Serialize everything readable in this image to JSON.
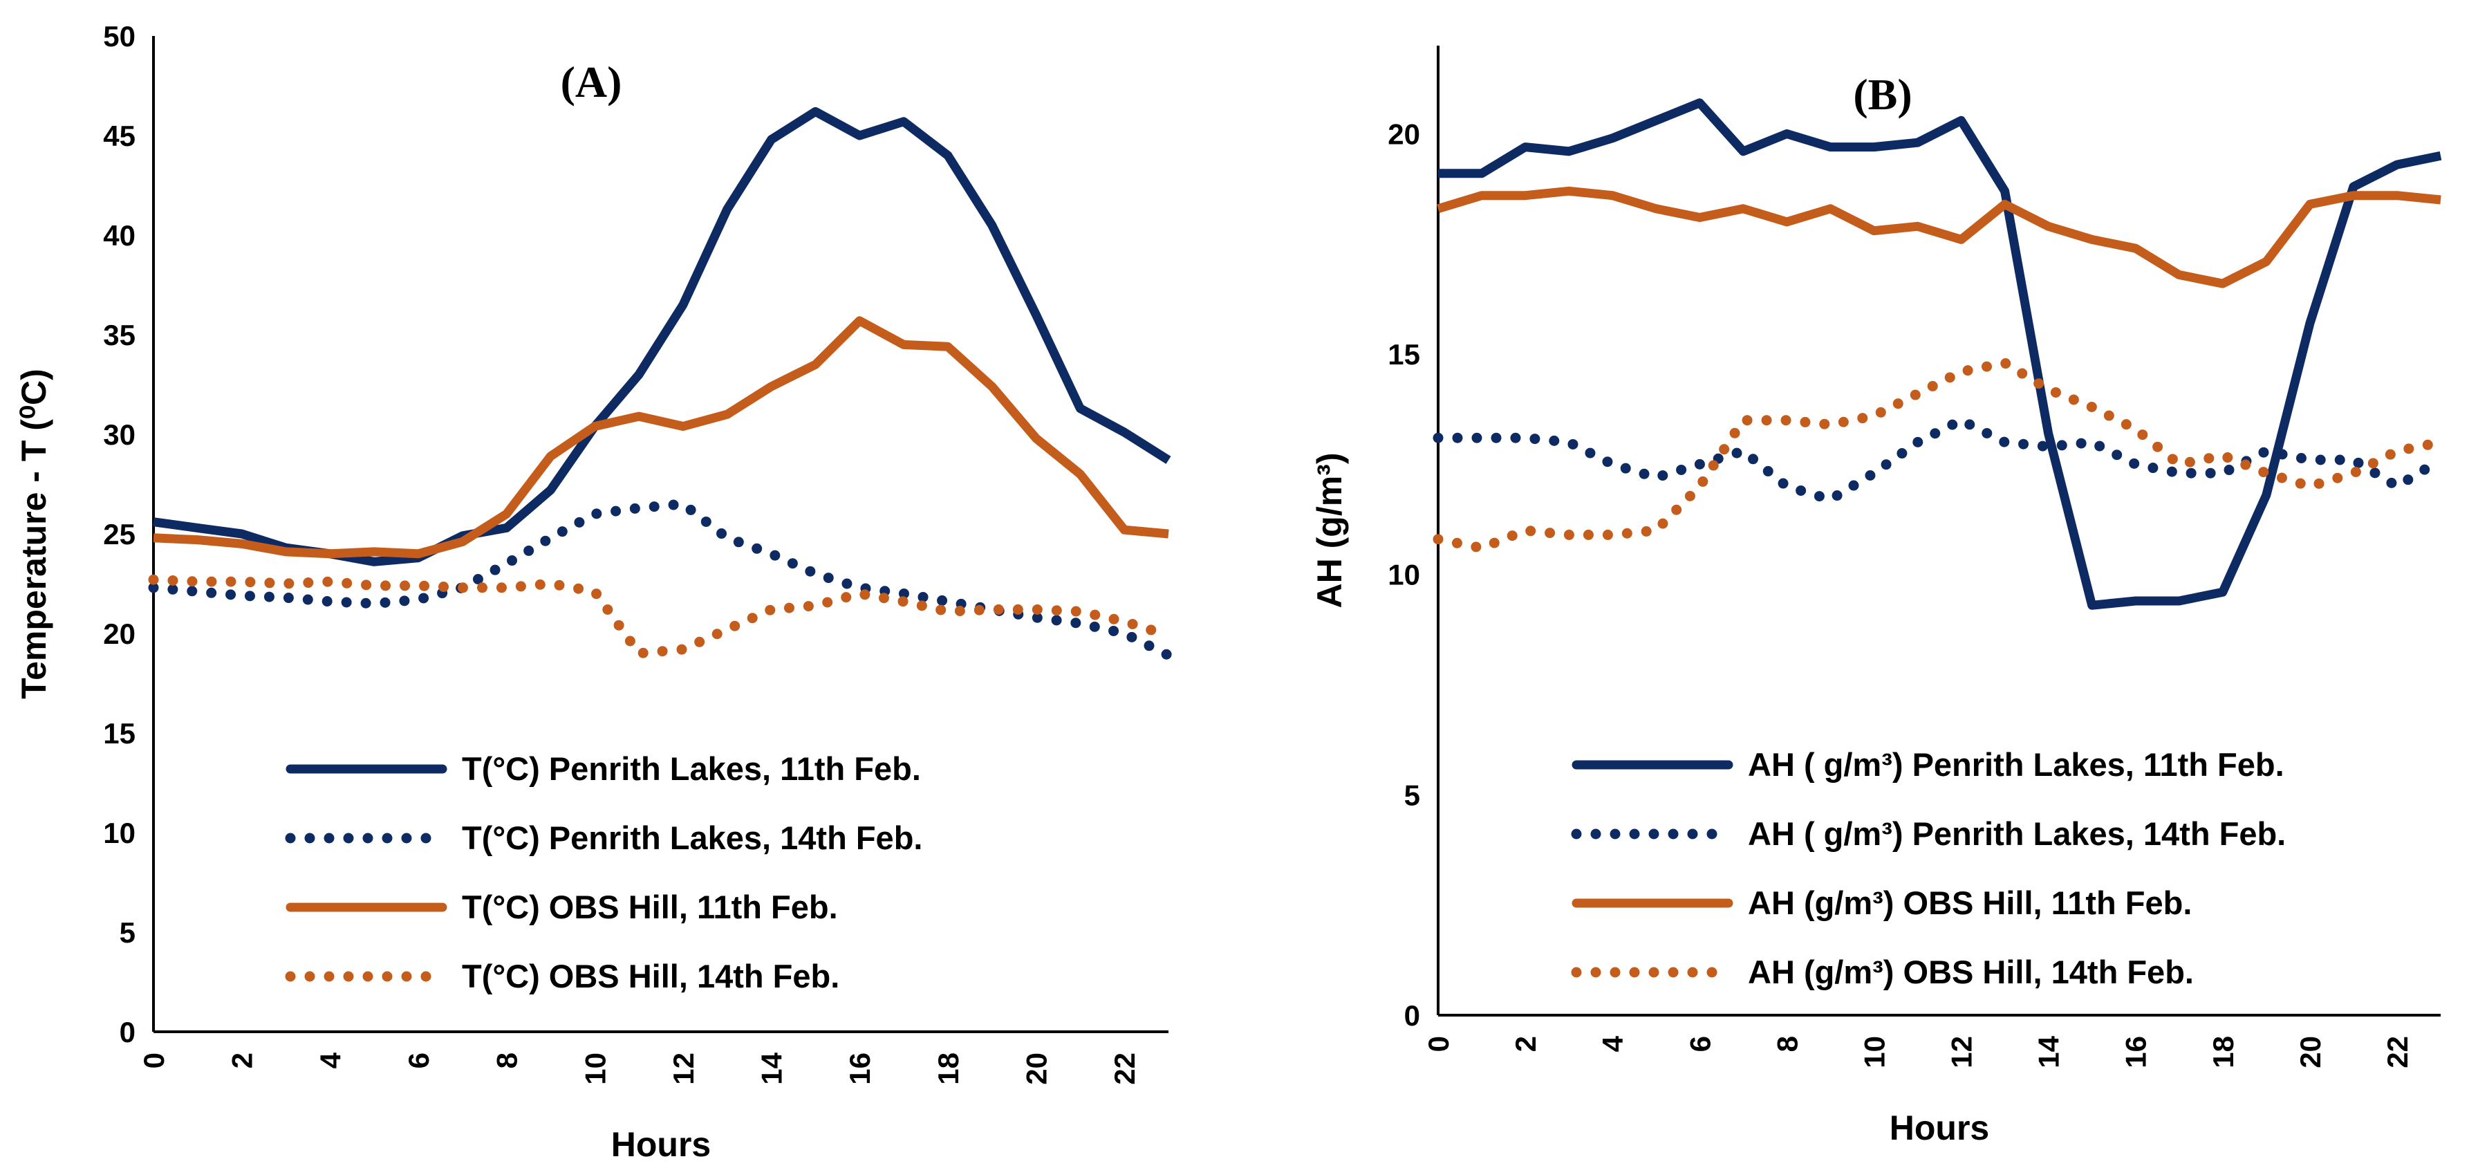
{
  "colors": {
    "navy": "#0d2a63",
    "orange": "#c45c1c"
  },
  "chart_data": [
    {
      "type": "line",
      "title": "(A)",
      "xlabel": "Hours",
      "ylabel": "Temperature - T (⁰C)",
      "ylim": [
        0,
        50
      ],
      "yticks": [
        0,
        5,
        10,
        15,
        20,
        25,
        30,
        35,
        40,
        45,
        50
      ],
      "xlim": [
        0,
        23
      ],
      "xticks": [
        0,
        2,
        4,
        6,
        8,
        10,
        12,
        14,
        16,
        18,
        20,
        22
      ],
      "grid": false,
      "legend_position": "bottom-right",
      "x": [
        0,
        1,
        2,
        3,
        4,
        5,
        6,
        7,
        8,
        9,
        10,
        11,
        12,
        13,
        14,
        15,
        16,
        17,
        18,
        19,
        20,
        21,
        22,
        23
      ],
      "series": [
        {
          "name": "T(°C) Penrith Lakes, 11th Feb.",
          "style": "solid",
          "color": "#0d2a63",
          "values": [
            25.6,
            25.3,
            25.0,
            24.3,
            24.0,
            23.6,
            23.8,
            24.9,
            25.3,
            27.2,
            30.4,
            33.0,
            36.5,
            41.3,
            44.8,
            46.2,
            45.0,
            45.7,
            44.0,
            40.5,
            36.0,
            31.3,
            30.1,
            28.7
          ]
        },
        {
          "name": "T(°C) Penrith Lakes, 14th Feb.",
          "style": "dotted",
          "color": "#0d2a63",
          "values": [
            22.3,
            22.1,
            21.9,
            21.8,
            21.6,
            21.5,
            21.7,
            22.3,
            23.5,
            24.8,
            26.0,
            26.3,
            26.5,
            24.8,
            24.0,
            23.0,
            22.3,
            22.0,
            21.6,
            21.2,
            20.8,
            20.5,
            20.0,
            18.9
          ]
        },
        {
          "name": "T(°C) OBS Hill, 11th Feb.",
          "style": "solid",
          "color": "#c45c1c",
          "values": [
            24.8,
            24.7,
            24.5,
            24.1,
            24.0,
            24.1,
            24.0,
            24.6,
            26.0,
            28.9,
            30.4,
            30.9,
            30.4,
            31.0,
            32.4,
            33.5,
            35.7,
            34.5,
            34.4,
            32.4,
            29.8,
            28.0,
            25.2,
            25.0
          ]
        },
        {
          "name": "T(°C) OBS Hill, 14th Feb.",
          "style": "dotted",
          "color": "#c45c1c",
          "values": [
            22.7,
            22.6,
            22.6,
            22.5,
            22.6,
            22.4,
            22.4,
            22.3,
            22.3,
            22.5,
            22.1,
            19.0,
            19.2,
            20.2,
            21.2,
            21.4,
            22.0,
            21.6,
            21.1,
            21.2,
            21.2,
            21.1,
            20.6,
            19.9
          ]
        }
      ]
    },
    {
      "type": "line",
      "title": "(B)",
      "xlabel": "Hours",
      "ylabel": "AH (g/m³)",
      "ylim": [
        0,
        22
      ],
      "yticks": [
        0,
        5,
        10,
        15,
        20
      ],
      "xlim": [
        0,
        23
      ],
      "xticks": [
        0,
        2,
        4,
        6,
        8,
        10,
        12,
        14,
        16,
        18,
        20,
        22
      ],
      "grid": false,
      "legend_position": "bottom-right",
      "x": [
        0,
        1,
        2,
        3,
        4,
        5,
        6,
        7,
        8,
        9,
        10,
        11,
        12,
        13,
        14,
        15,
        16,
        17,
        18,
        19,
        20,
        21,
        22,
        23
      ],
      "series": [
        {
          "name": "AH ( g/m³) Penrith Lakes, 11th Feb.",
          "style": "solid",
          "color": "#0d2a63",
          "values": [
            19.1,
            19.1,
            19.7,
            19.6,
            19.9,
            20.3,
            20.7,
            19.6,
            20.0,
            19.7,
            19.7,
            19.8,
            20.3,
            18.7,
            13.2,
            9.3,
            9.4,
            9.4,
            9.6,
            11.8,
            15.7,
            18.8,
            19.3,
            19.5
          ]
        },
        {
          "name": "AH ( g/m³) Penrith Lakes, 14th Feb.",
          "style": "dotted",
          "color": "#0d2a63",
          "values": [
            13.1,
            13.1,
            13.1,
            13.0,
            12.5,
            12.2,
            12.5,
            12.8,
            12.0,
            11.7,
            12.3,
            13.0,
            13.5,
            13.0,
            12.9,
            13.0,
            12.5,
            12.3,
            12.3,
            12.8,
            12.6,
            12.6,
            12.0,
            12.6
          ]
        },
        {
          "name": "AH (g/m³) OBS Hill, 11th Feb.",
          "style": "solid",
          "color": "#c45c1c",
          "values": [
            18.3,
            18.6,
            18.6,
            18.7,
            18.6,
            18.3,
            18.1,
            18.3,
            18.0,
            18.3,
            17.8,
            17.9,
            17.6,
            18.4,
            17.9,
            17.6,
            17.4,
            16.8,
            16.6,
            17.1,
            18.4,
            18.6,
            18.6,
            18.5
          ]
        },
        {
          "name": "AH (g/m³) OBS Hill, 14th Feb.",
          "style": "dotted",
          "color": "#c45c1c",
          "values": [
            10.8,
            10.6,
            11.0,
            10.9,
            10.9,
            11.0,
            12.0,
            13.5,
            13.5,
            13.4,
            13.6,
            14.1,
            14.6,
            14.8,
            14.2,
            13.8,
            13.3,
            12.5,
            12.7,
            12.3,
            12.0,
            12.3,
            12.8,
            13.0
          ]
        }
      ]
    }
  ]
}
